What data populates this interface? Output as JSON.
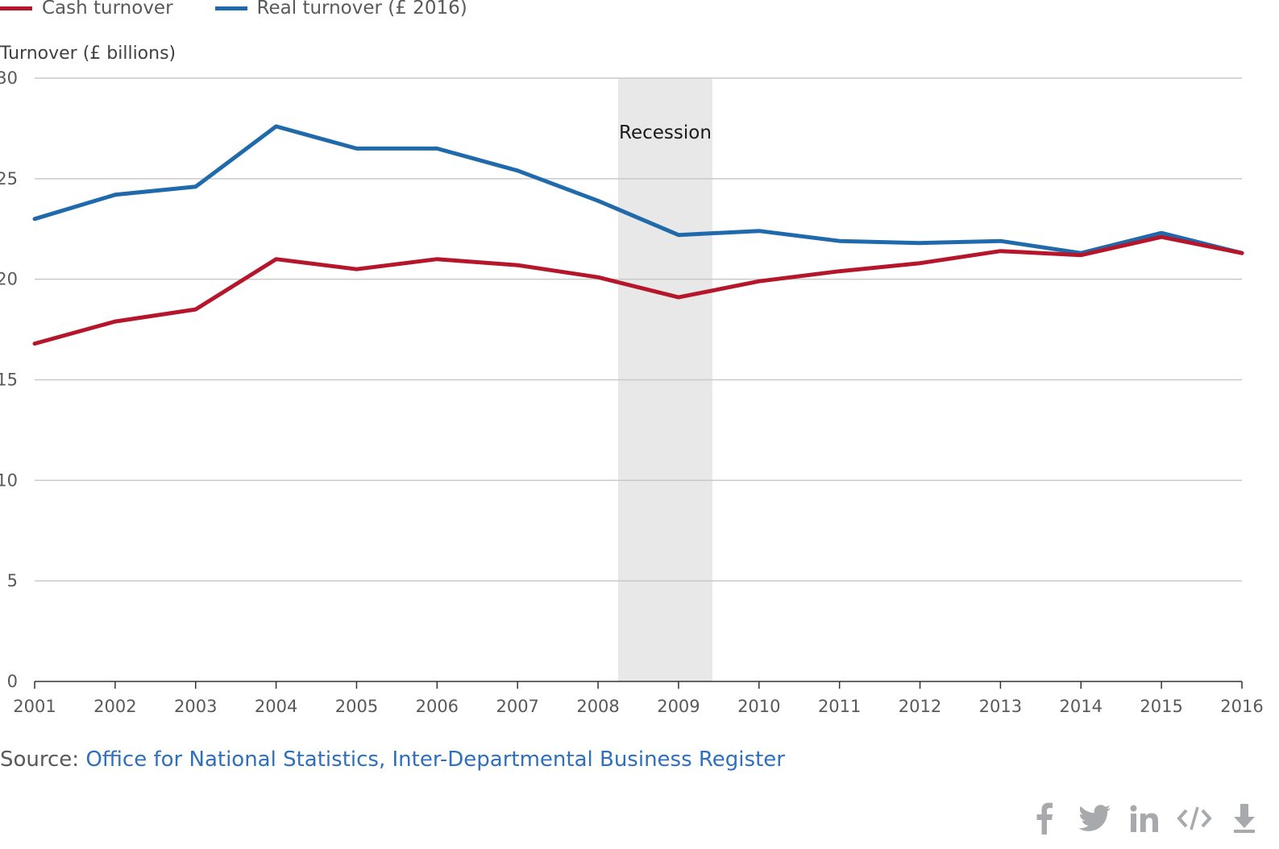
{
  "legend": [
    {
      "label": "Cash turnover",
      "color": "#b5162b"
    },
    {
      "label": "Real turnover (£ 2016)",
      "color": "#206aac"
    }
  ],
  "chart_data": {
    "type": "line",
    "ylabel": "Turnover (£ billions)",
    "x": [
      2001,
      2002,
      2003,
      2004,
      2005,
      2006,
      2007,
      2008,
      2009,
      2010,
      2011,
      2012,
      2013,
      2014,
      2015,
      2016
    ],
    "ylim": [
      0,
      30
    ],
    "yticks": [
      0,
      5,
      10,
      15,
      20,
      25,
      30
    ],
    "grid": true,
    "legend_position": "top-left",
    "series": [
      {
        "name": "Cash turnover",
        "color": "#b5162b",
        "values": [
          16.8,
          17.9,
          18.5,
          21.0,
          20.5,
          21.0,
          20.7,
          20.1,
          19.1,
          19.9,
          20.4,
          20.8,
          21.4,
          21.2,
          22.1,
          21.3
        ]
      },
      {
        "name": "Real turnover (£ 2016)",
        "color": "#206aac",
        "values": [
          23.0,
          24.2,
          24.6,
          27.6,
          26.5,
          26.5,
          25.4,
          23.9,
          22.2,
          22.4,
          21.9,
          21.8,
          21.9,
          21.3,
          22.3,
          21.3
        ]
      }
    ],
    "annotations": [
      {
        "label": "Recession",
        "x_start": 2008.25,
        "x_end": 2009.42,
        "shade": "#e8e8e8"
      }
    ]
  },
  "source": {
    "prefix": "Source: ",
    "link_text": "Office for National Statistics, Inter-Departmental Business Register"
  },
  "share": [
    {
      "name": "facebook-icon"
    },
    {
      "name": "twitter-icon"
    },
    {
      "name": "linkedin-icon"
    },
    {
      "name": "embed-icon"
    },
    {
      "name": "download-icon"
    }
  ]
}
